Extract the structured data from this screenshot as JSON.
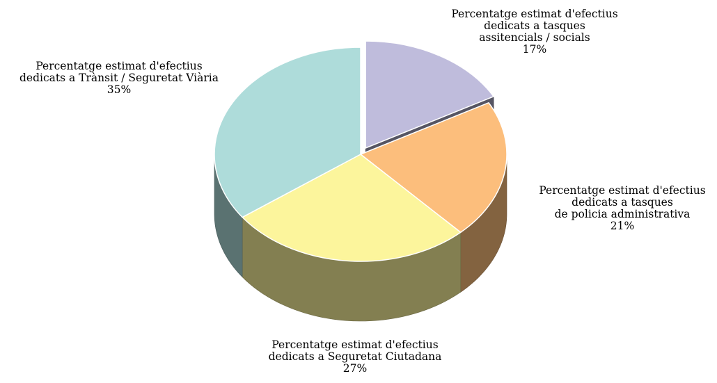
{
  "chart_data": {
    "type": "pie",
    "title": "",
    "slices": [
      {
        "label_lines": [
          "Percentatge estimat d'efectius",
          "dedicats a tasques",
          "assitencials / socials"
        ],
        "value": 17,
        "value_label": "17%",
        "color": "#BFBCDC",
        "exploded": true
      },
      {
        "label_lines": [
          "Percentatge estimat d'efectius",
          "dedicats a tasques",
          "de policia administrativa"
        ],
        "value": 21,
        "value_label": "21%",
        "color": "#FCBE7C",
        "exploded": false
      },
      {
        "label_lines": [
          "Percentatge estimat d'efectius",
          "dedicats a Seguretat Ciutadana"
        ],
        "value": 27,
        "value_label": "27%",
        "color": "#FCF59C",
        "exploded": false
      },
      {
        "label_lines": [
          "Percentatge estimat d'efectius",
          "dedicats a Trànsit / Seguretat Viària"
        ],
        "value": 35,
        "value_label": "35%",
        "color": "#AEDCDA",
        "exploded": false
      }
    ]
  }
}
